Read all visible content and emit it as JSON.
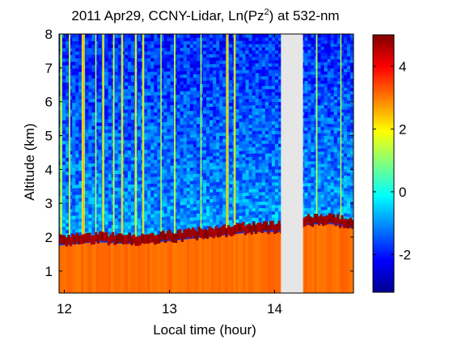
{
  "chart_data": {
    "type": "heatmap",
    "title": "2011 Apr29, CCNY-Lidar, Ln(Pz",
    "title_sup": "2",
    "title_end": ") at 532-nm",
    "xlabel": "Local time (hour)",
    "ylabel": "Altitude (km)",
    "xlim": [
      11.95,
      14.75
    ],
    "ylim": [
      0.35,
      8
    ],
    "x_ticks": [
      12,
      13,
      14
    ],
    "x_tick_labels": [
      "12",
      "13",
      "14"
    ],
    "y_ticks": [
      1,
      2,
      3,
      4,
      5,
      6,
      7,
      8
    ],
    "y_tick_labels": [
      "1",
      "2",
      "3",
      "4",
      "5",
      "6",
      "7",
      "8"
    ],
    "colorbar": {
      "colormap": "jet",
      "clim": [
        -3.2,
        5
      ],
      "ticks": [
        -2,
        0,
        2,
        4
      ],
      "tick_labels": [
        "-2",
        "0",
        "2",
        "4"
      ]
    },
    "data_gap": {
      "x_start": 14.06,
      "x_end": 14.27,
      "color": "#e6e6e6"
    },
    "boundary_layer": {
      "times": [
        11.95,
        12.3,
        12.6,
        12.9,
        13.2,
        13.5,
        13.8,
        14.05,
        14.27,
        14.5,
        14.75
      ],
      "top_km": [
        1.9,
        2.0,
        1.95,
        2.0,
        2.1,
        2.2,
        2.3,
        2.3,
        2.5,
        2.55,
        2.4
      ]
    },
    "surface_layer_value": 3.1,
    "background_value_high": -1.9,
    "background_value_low": -0.9,
    "cloud_streaks": [
      {
        "time": 11.97,
        "width_h": 0.02,
        "value": 1.0
      },
      {
        "time": 12.05,
        "width_h": 0.015,
        "value": 1.2
      },
      {
        "time": 12.18,
        "width_h": 0.03,
        "value": 1.6
      },
      {
        "time": 12.3,
        "width_h": 0.012,
        "value": 1.0
      },
      {
        "time": 12.37,
        "width_h": 0.02,
        "value": 1.3
      },
      {
        "time": 12.47,
        "width_h": 0.015,
        "value": 1.1
      },
      {
        "time": 12.55,
        "width_h": 0.02,
        "value": 1.4
      },
      {
        "time": 12.68,
        "width_h": 0.02,
        "value": 1.2
      },
      {
        "time": 12.75,
        "width_h": 0.02,
        "value": 1.3
      },
      {
        "time": 12.92,
        "width_h": 0.012,
        "value": 0.9
      },
      {
        "time": 13.05,
        "width_h": 0.015,
        "value": 1.1
      },
      {
        "time": 13.3,
        "width_h": 0.012,
        "value": 0.8
      },
      {
        "time": 13.55,
        "width_h": 0.025,
        "value": 1.5
      },
      {
        "time": 13.62,
        "width_h": 0.02,
        "value": 1.4
      },
      {
        "time": 14.4,
        "width_h": 0.015,
        "value": 0.8
      },
      {
        "time": 14.63,
        "width_h": 0.012,
        "value": 0.9
      }
    ]
  }
}
